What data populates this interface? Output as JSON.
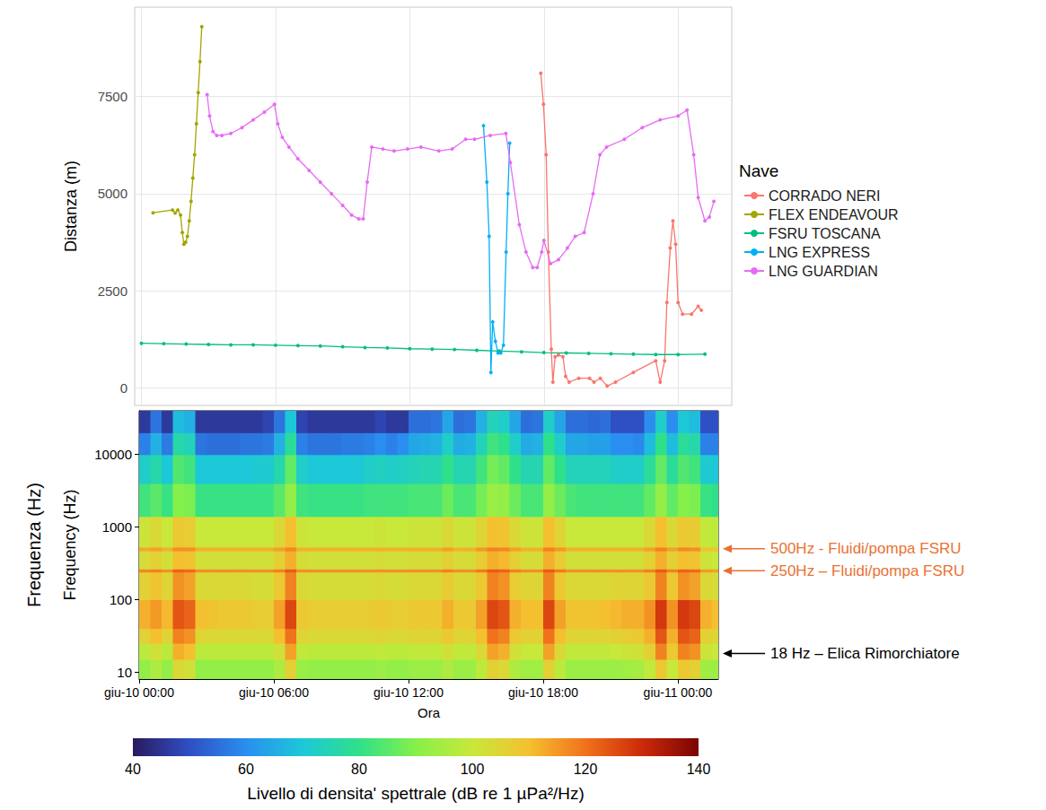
{
  "chart_data": [
    {
      "type": "line",
      "ylabel": "Distanza (m)",
      "xlim": [
        -0.3,
        26.4
      ],
      "xticks": [
        0,
        6,
        12,
        18,
        24
      ],
      "ylim": [
        -450,
        9800
      ],
      "yticks": [
        0,
        2500,
        5000,
        7500
      ],
      "grid": true,
      "tick_labels": "y",
      "legend": "right",
      "legend_title": "Nave",
      "marker": "circle",
      "series": [
        {
          "name": "CORRADO NERI",
          "color": "#F8766D",
          "x": [
            17.86,
            17.98,
            18.1,
            18.2,
            18.33,
            18.4,
            18.5,
            18.65,
            18.85,
            18.97,
            19.13,
            19.56,
            20.04,
            20.24,
            20.52,
            20.83,
            21.2,
            22.0,
            23.0,
            23.2,
            23.4,
            23.5,
            23.65,
            23.77,
            23.89,
            24.0,
            24.2,
            24.6,
            24.9,
            25.04
          ],
          "values": [
            8100,
            7300,
            6000,
            3500,
            1000,
            150,
            800,
            850,
            800,
            300,
            150,
            250,
            250,
            150,
            250,
            50,
            150,
            400,
            700,
            150,
            700,
            2200,
            3600,
            4300,
            3700,
            2200,
            1900,
            1900,
            2100,
            2000
          ]
        },
        {
          "name": "FLEX ENDEAVOUR",
          "color": "#A3A500",
          "x": [
            0.52,
            1.39,
            1.51,
            1.63,
            1.75,
            1.83,
            1.9,
            1.98,
            2.06,
            2.14,
            2.22,
            2.3,
            2.38,
            2.46,
            2.54,
            2.62,
            2.7
          ],
          "values": [
            4510,
            4580,
            4500,
            4580,
            4450,
            4000,
            3700,
            3750,
            3900,
            4300,
            4800,
            5400,
            6000,
            6800,
            7600,
            8400,
            9300
          ]
        },
        {
          "name": "FSRU TOSCANA",
          "color": "#00BF7D",
          "x": [
            0,
            1,
            2,
            3,
            4,
            5,
            6,
            7,
            8,
            9,
            10,
            11,
            12,
            13,
            14,
            15,
            16,
            17,
            18,
            19,
            20,
            21,
            22,
            23,
            24,
            25.2
          ],
          "values": [
            1150,
            1140,
            1130,
            1120,
            1110,
            1110,
            1100,
            1090,
            1080,
            1060,
            1040,
            1030,
            1010,
            1000,
            990,
            970,
            950,
            930,
            910,
            900,
            890,
            880,
            870,
            860,
            860,
            870
          ]
        },
        {
          "name": "LNG EXPRESS",
          "color": "#00B0F6",
          "x": [
            15.3,
            15.45,
            15.55,
            15.63,
            15.71,
            15.83,
            15.95,
            16.07,
            16.19,
            16.31,
            16.39,
            16.47
          ],
          "values": [
            6750,
            5300,
            3900,
            400,
            1700,
            1200,
            900,
            900,
            1100,
            3500,
            5000,
            6300
          ]
        },
        {
          "name": "LNG GUARDIAN",
          "color": "#E76BF3",
          "x": [
            2.94,
            3.05,
            3.2,
            3.37,
            3.6,
            4.0,
            4.5,
            5.0,
            5.5,
            5.95,
            6.1,
            6.3,
            6.6,
            7.0,
            7.5,
            8.0,
            8.5,
            9.0,
            9.4,
            9.72,
            9.92,
            10.1,
            10.3,
            10.8,
            11.3,
            11.9,
            12.5,
            13.3,
            13.9,
            14.5,
            14.9,
            15.6,
            16.3,
            16.5,
            16.9,
            17.2,
            17.5,
            17.7,
            17.9,
            18.0,
            18.3,
            18.65,
            19.05,
            19.4,
            19.8,
            20.2,
            20.5,
            20.8,
            21.6,
            22.4,
            23.2,
            24.0,
            24.4,
            24.7,
            24.9,
            25.2,
            25.4,
            25.6
          ],
          "values": [
            7550,
            7000,
            6600,
            6500,
            6500,
            6550,
            6700,
            6900,
            7100,
            7300,
            6800,
            6450,
            6200,
            5900,
            5600,
            5300,
            5000,
            4700,
            4450,
            4350,
            4350,
            5300,
            6200,
            6150,
            6100,
            6150,
            6200,
            6100,
            6150,
            6400,
            6400,
            6500,
            6550,
            5800,
            4200,
            3500,
            3100,
            3100,
            3500,
            3800,
            3200,
            3300,
            3600,
            3900,
            4000,
            5000,
            6000,
            6200,
            6400,
            6700,
            6900,
            7000,
            7150,
            6000,
            4900,
            4300,
            4400,
            4800
          ]
        }
      ]
    },
    {
      "type": "heatmap",
      "xlabel": "Ora",
      "ylabel": "Frequency (Hz)",
      "ylabel_outer": "Frequenza (Hz)",
      "log": "y",
      "grid": false,
      "xlim": [
        0,
        25.8
      ],
      "xticks": [
        {
          "value": 0,
          "label": "giu-10 00:00"
        },
        {
          "value": 6,
          "label": "giu-10 06:00"
        },
        {
          "value": 12,
          "label": "giu-10 12:00"
        },
        {
          "value": 18,
          "label": "giu-10 18:00"
        },
        {
          "value": 24,
          "label": "giu-11 00:00"
        }
      ],
      "ylim": [
        8,
        40000
      ],
      "yticks": [
        10,
        100,
        1000,
        10000
      ],
      "x_bins": [
        0,
        0.5,
        1,
        1.5,
        2,
        2.5,
        3,
        3.5,
        4,
        4.5,
        5,
        5.5,
        6,
        6.5,
        7,
        7.5,
        8,
        8.5,
        9,
        9.5,
        10,
        10.5,
        11,
        11.5,
        12,
        12.5,
        13,
        13.5,
        14,
        14.5,
        15,
        15.5,
        16,
        16.5,
        17,
        17.5,
        18,
        18.5,
        19,
        19.5,
        20,
        20.5,
        21,
        21.5,
        22,
        22.5,
        23,
        23.5,
        24,
        24.5,
        25,
        25.5,
        26
      ],
      "y_bins": [
        8,
        15,
        25,
        40,
        100,
        240,
        265,
        470,
        530,
        1400,
        4000,
        10000,
        20000,
        40000
      ],
      "levels": [
        [
          92,
          96,
          92,
          104,
          102,
          92,
          92,
          92,
          92,
          92,
          92,
          92,
          96,
          106,
          93,
          92,
          92,
          92,
          92,
          92,
          92,
          93,
          92,
          92,
          93,
          93,
          93,
          96,
          93,
          93,
          98,
          106,
          104,
          96,
          94,
          94,
          106,
          98,
          93,
          93,
          93,
          93,
          93,
          94,
          95,
          99,
          108,
          100,
          108,
          106,
          94,
          93
        ],
        [
          98,
          102,
          98,
          112,
          110,
          98,
          98,
          98,
          98,
          98,
          98,
          98,
          102,
          114,
          99,
          98,
          98,
          98,
          98,
          98,
          98,
          99,
          98,
          98,
          99,
          99,
          99,
          102,
          99,
          99,
          104,
          114,
          112,
          102,
          100,
          100,
          114,
          104,
          99,
          99,
          99,
          99,
          100,
          101,
          102,
          106,
          118,
          108,
          118,
          116,
          101,
          100
        ],
        [
          106,
          110,
          105,
          118,
          116,
          105,
          104,
          104,
          104,
          104,
          104,
          104,
          110,
          120,
          105,
          104,
          104,
          104,
          104,
          104,
          104,
          105,
          104,
          104,
          105,
          105,
          105,
          108,
          105,
          105,
          110,
          120,
          118,
          108,
          106,
          106,
          120,
          110,
          105,
          105,
          105,
          105,
          106,
          107,
          108,
          112,
          124,
          112,
          124,
          122,
          106,
          105
        ],
        [
          112,
          115,
          111,
          124,
          122,
          110,
          109,
          108,
          108,
          108,
          107,
          107,
          114,
          126,
          108,
          107,
          107,
          107,
          107,
          107,
          107,
          108,
          107,
          107,
          108,
          108,
          108,
          112,
          108,
          108,
          114,
          126,
          124,
          112,
          110,
          110,
          126,
          114,
          109,
          109,
          109,
          110,
          111,
          112,
          112,
          116,
          128,
          116,
          128,
          126,
          112,
          110
        ],
        [
          106,
          109,
          105,
          116,
          114,
          104,
          104,
          104,
          104,
          104,
          103,
          103,
          108,
          118,
          104,
          103,
          103,
          103,
          103,
          103,
          103,
          104,
          103,
          103,
          104,
          104,
          104,
          107,
          104,
          104,
          108,
          118,
          116,
          107,
          105,
          105,
          118,
          108,
          104,
          104,
          104,
          104,
          105,
          105,
          105,
          108,
          118,
          108,
          116,
          114,
          104,
          103
        ],
        [
          117,
          118,
          116,
          122,
          121,
          116,
          116,
          116,
          116,
          116,
          116,
          116,
          118,
          123,
          116,
          116,
          116,
          116,
          116,
          116,
          116,
          116,
          116,
          116,
          116,
          116,
          116,
          118,
          116,
          116,
          119,
          123,
          122,
          118,
          116,
          116,
          123,
          119,
          116,
          116,
          116,
          116,
          116,
          116,
          116,
          118,
          123,
          118,
          122,
          121,
          115,
          114
        ],
        [
          103,
          106,
          102,
          110,
          109,
          102,
          102,
          102,
          102,
          102,
          102,
          102,
          106,
          112,
          103,
          102,
          102,
          102,
          102,
          102,
          102,
          103,
          102,
          102,
          103,
          103,
          103,
          106,
          103,
          103,
          107,
          112,
          111,
          106,
          103,
          103,
          112,
          107,
          102,
          102,
          102,
          102,
          102,
          102,
          102,
          106,
          112,
          106,
          110,
          109,
          101,
          100
        ],
        [
          113,
          114,
          112,
          116,
          116,
          112,
          112,
          112,
          112,
          112,
          112,
          112,
          114,
          117,
          112,
          112,
          112,
          112,
          112,
          112,
          112,
          112,
          112,
          112,
          112,
          112,
          112,
          114,
          112,
          112,
          115,
          118,
          117,
          114,
          112,
          112,
          118,
          115,
          112,
          112,
          112,
          112,
          112,
          112,
          112,
          114,
          118,
          114,
          117,
          116,
          110,
          110
        ],
        [
          101,
          104,
          100,
          108,
          107,
          100,
          100,
          100,
          100,
          100,
          100,
          100,
          104,
          110,
          101,
          100,
          100,
          100,
          100,
          100,
          100,
          101,
          100,
          100,
          101,
          101,
          101,
          104,
          101,
          101,
          105,
          110,
          109,
          104,
          101,
          101,
          110,
          105,
          100,
          100,
          100,
          100,
          100,
          100,
          100,
          104,
          110,
          104,
          108,
          107,
          99,
          98
        ],
        [
          82,
          85,
          81,
          90,
          89,
          81,
          81,
          81,
          81,
          81,
          81,
          81,
          85,
          92,
          82,
          81,
          81,
          81,
          81,
          81,
          82,
          82,
          82,
          82,
          83,
          83,
          83,
          87,
          83,
          83,
          88,
          93,
          92,
          87,
          83,
          83,
          92,
          87,
          83,
          82,
          82,
          82,
          82,
          82,
          82,
          86,
          92,
          86,
          90,
          89,
          81,
          80
        ],
        [
          72,
          76,
          70,
          84,
          82,
          70,
          70,
          70,
          70,
          70,
          71,
          71,
          76,
          86,
          72,
          70,
          70,
          70,
          70,
          70,
          72,
          73,
          72,
          73,
          74,
          75,
          75,
          80,
          75,
          75,
          82,
          88,
          86,
          80,
          75,
          75,
          86,
          80,
          74,
          74,
          74,
          74,
          72,
          72,
          72,
          78,
          86,
          78,
          84,
          82,
          71,
          70
        ],
        [
          58,
          66,
          57,
          76,
          74,
          56,
          55,
          55,
          55,
          56,
          56,
          57,
          66,
          78,
          58,
          56,
          56,
          56,
          57,
          57,
          58,
          60,
          58,
          60,
          64,
          65,
          66,
          72,
          65,
          66,
          74,
          82,
          80,
          72,
          65,
          66,
          80,
          72,
          64,
          64,
          63,
          63,
          60,
          60,
          59,
          68,
          80,
          68,
          78,
          76,
          58,
          58
        ],
        [
          46,
          56,
          46,
          68,
          66,
          46,
          46,
          46,
          46,
          46,
          46,
          48,
          56,
          70,
          48,
          46,
          46,
          46,
          46,
          46,
          46,
          48,
          46,
          46,
          55,
          55,
          56,
          64,
          55,
          56,
          66,
          74,
          72,
          64,
          55,
          56,
          72,
          64,
          55,
          55,
          54,
          55,
          50,
          50,
          50,
          60,
          72,
          60,
          70,
          68,
          50,
          50
        ]
      ],
      "colorbar": {
        "lim": [
          40,
          140
        ],
        "ticks": [
          40,
          60,
          80,
          100,
          120,
          140
        ],
        "label": "Livello di densita' spettrale (dB re 1 µPa²/Hz)",
        "colors": [
          "#2a1a5e",
          "#2f4fc4",
          "#2a8ef0",
          "#1cc8d8",
          "#2fe08a",
          "#86f04a",
          "#c8e83a",
          "#f5c030",
          "#f0721c",
          "#cc2a0a",
          "#7a0403"
        ]
      },
      "annotations": [
        {
          "text": "500Hz - Fluidi/pompa FSRU",
          "y": 500,
          "color": "#e97132"
        },
        {
          "text": "250Hz – Fluidi/pompa FSRU",
          "y": 250,
          "color": "#e97132"
        },
        {
          "text": "18 Hz – Elica Rimorchiatore",
          "y": 18,
          "color": "#000000"
        }
      ]
    }
  ]
}
